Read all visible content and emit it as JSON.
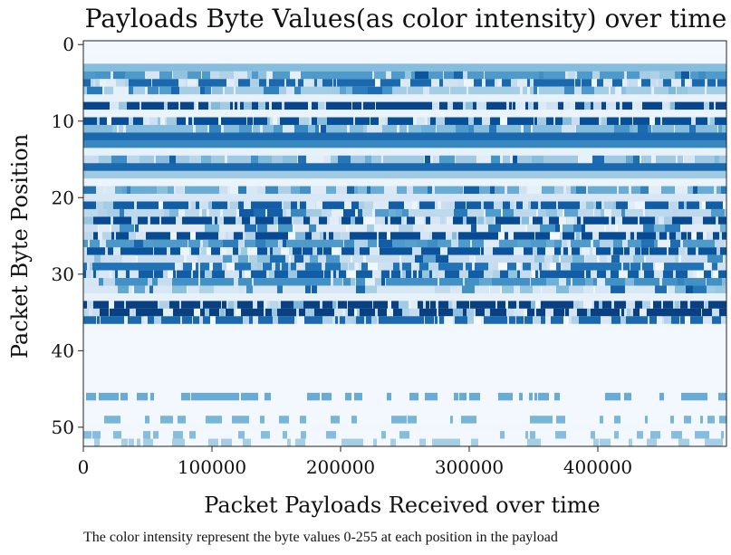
{
  "chart_data": {
    "type": "heatmap",
    "title": "Payloads Byte Values(as color intensity) over time",
    "xlabel": "Packet Payloads Received over time",
    "ylabel": "Packet Byte Position",
    "caption": "The color intensity represent the byte values 0-255 at each position in the payload",
    "xlim": [
      0,
      500000
    ],
    "ylim": [
      53,
      0
    ],
    "x_ticks": [
      0,
      100000,
      200000,
      300000,
      400000
    ],
    "x_tick_labels": [
      "0",
      "100000",
      "200000",
      "300000",
      "400000"
    ],
    "y_ticks": [
      0,
      10,
      20,
      30,
      40,
      50
    ],
    "y_tick_labels": [
      "0",
      "10",
      "20",
      "30",
      "40",
      "50"
    ],
    "colormap": "Blues",
    "value_range": [
      0,
      255
    ],
    "rows": [
      {
        "pos": 0,
        "value": 5,
        "pattern": "const"
      },
      {
        "pos": 1,
        "value": 5,
        "pattern": "const"
      },
      {
        "pos": 2,
        "value": 8,
        "pattern": "const"
      },
      {
        "pos": 3,
        "value": 110,
        "pattern": "const"
      },
      {
        "pos": 4,
        "value": 150,
        "pattern": "mixed"
      },
      {
        "pos": 5,
        "value": 200,
        "pattern": "stripe"
      },
      {
        "pos": 6,
        "value": 90,
        "pattern": "mixed"
      },
      {
        "pos": 7,
        "value": 20,
        "pattern": "const"
      },
      {
        "pos": 8,
        "value": 235,
        "pattern": "stripe"
      },
      {
        "pos": 9,
        "value": 15,
        "pattern": "const"
      },
      {
        "pos": 10,
        "value": 225,
        "pattern": "stripe"
      },
      {
        "pos": 11,
        "value": 110,
        "pattern": "mixed"
      },
      {
        "pos": 12,
        "value": 200,
        "pattern": "const"
      },
      {
        "pos": 13,
        "value": 170,
        "pattern": "const"
      },
      {
        "pos": 14,
        "value": 20,
        "pattern": "const"
      },
      {
        "pos": 15,
        "value": 95,
        "pattern": "mixed"
      },
      {
        "pos": 16,
        "value": 200,
        "pattern": "const"
      },
      {
        "pos": 17,
        "value": 95,
        "pattern": "const"
      },
      {
        "pos": 18,
        "value": 15,
        "pattern": "const"
      },
      {
        "pos": 19,
        "value": 130,
        "pattern": "mixed"
      },
      {
        "pos": 20,
        "value": 40,
        "pattern": "const"
      },
      {
        "pos": 21,
        "value": 210,
        "pattern": "stripe"
      },
      {
        "pos": 22,
        "value": 70,
        "pattern": "mixed"
      },
      {
        "pos": 23,
        "value": 230,
        "pattern": "stripe"
      },
      {
        "pos": 24,
        "value": 30,
        "pattern": "mixed"
      },
      {
        "pos": 25,
        "value": 230,
        "pattern": "stripe"
      },
      {
        "pos": 26,
        "value": 150,
        "pattern": "mixed"
      },
      {
        "pos": 27,
        "value": 220,
        "pattern": "stripe"
      },
      {
        "pos": 28,
        "value": 60,
        "pattern": "mixed"
      },
      {
        "pos": 29,
        "value": 190,
        "pattern": "stripe"
      },
      {
        "pos": 30,
        "value": 210,
        "pattern": "stripe"
      },
      {
        "pos": 31,
        "value": 160,
        "pattern": "mixed"
      },
      {
        "pos": 32,
        "value": 40,
        "pattern": "mixed"
      },
      {
        "pos": 33,
        "value": 20,
        "pattern": "const"
      },
      {
        "pos": 34,
        "value": 240,
        "pattern": "stripe"
      },
      {
        "pos": 35,
        "value": 240,
        "pattern": "stripe"
      },
      {
        "pos": 36,
        "value": 200,
        "pattern": "stripe"
      },
      {
        "pos": 37,
        "value": 8,
        "pattern": "const"
      },
      {
        "pos": 38,
        "value": 5,
        "pattern": "const"
      },
      {
        "pos": 39,
        "value": 5,
        "pattern": "const"
      },
      {
        "pos": 40,
        "value": 5,
        "pattern": "const"
      },
      {
        "pos": 41,
        "value": 5,
        "pattern": "const"
      },
      {
        "pos": 42,
        "value": 5,
        "pattern": "const"
      },
      {
        "pos": 43,
        "value": 5,
        "pattern": "const"
      },
      {
        "pos": 44,
        "value": 5,
        "pattern": "const"
      },
      {
        "pos": 45,
        "value": 5,
        "pattern": "const"
      },
      {
        "pos": 46,
        "value": 130,
        "pattern": "sparse"
      },
      {
        "pos": 47,
        "value": 5,
        "pattern": "const"
      },
      {
        "pos": 48,
        "value": 5,
        "pattern": "const"
      },
      {
        "pos": 49,
        "value": 120,
        "pattern": "sparse"
      },
      {
        "pos": 50,
        "value": 8,
        "pattern": "const"
      },
      {
        "pos": 51,
        "value": 110,
        "pattern": "sparse"
      },
      {
        "pos": 52,
        "value": 90,
        "pattern": "sparse"
      }
    ]
  }
}
